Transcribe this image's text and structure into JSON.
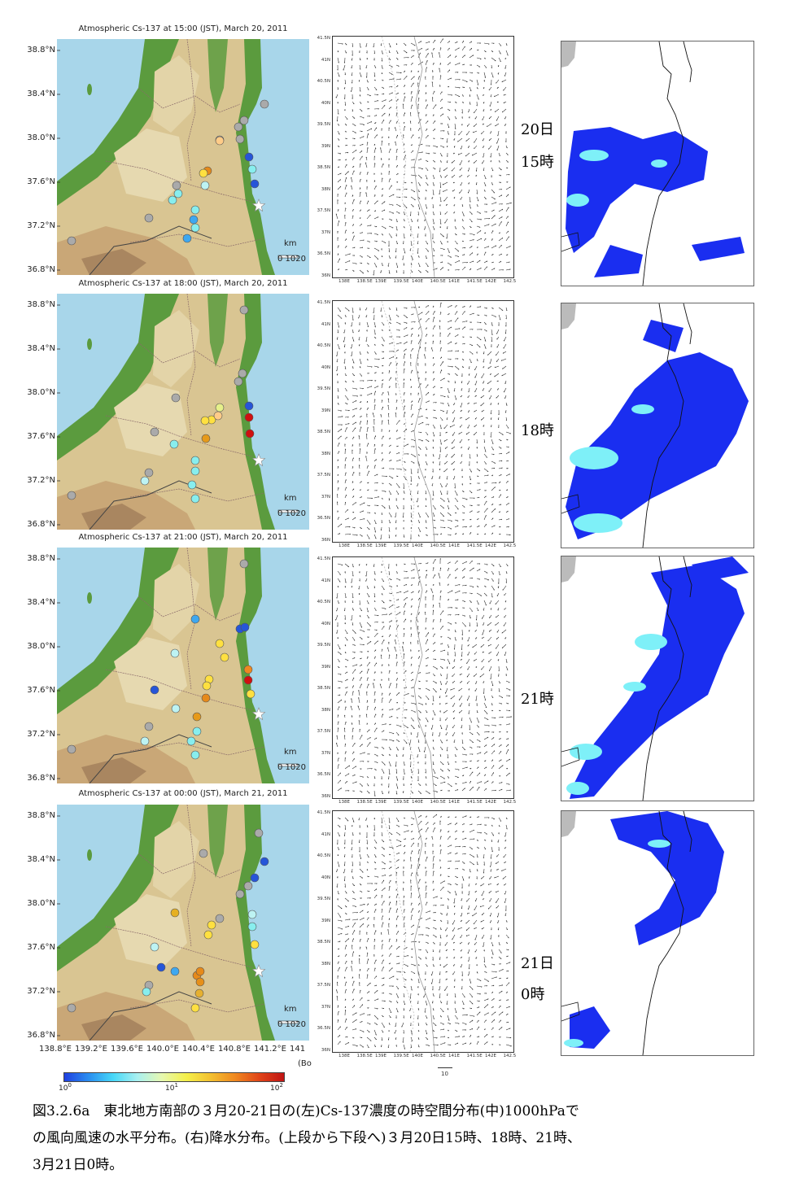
{
  "panels": [
    {
      "map_title": "Atmospheric Cs-137 at 15:00 (JST), March 20, 2011",
      "time_label_lines": [
        "20日",
        "15時"
      ],
      "scale_unit": "km",
      "scale_ticks": "0 1020"
    },
    {
      "map_title": "Atmospheric Cs-137 at 18:00 (JST), March 20, 2011",
      "time_label_lines": [
        "18時"
      ],
      "scale_unit": "km",
      "scale_ticks": "0 1020"
    },
    {
      "map_title": "Atmospheric Cs-137 at 21:00 (JST), March 20, 2011",
      "time_label_lines": [
        "21時"
      ],
      "scale_unit": "km",
      "scale_ticks": "0 1020"
    },
    {
      "map_title": "Atmospheric Cs-137 at 00:00 (JST), March 21, 2011",
      "time_label_lines": [
        "21日",
        "0時"
      ],
      "scale_unit": "km",
      "scale_ticks": "0 1020"
    }
  ],
  "map_lat_labels": [
    "38.8°N",
    "38.4°N",
    "38.0°N",
    "37.6°N",
    "37.2°N",
    "36.8°N"
  ],
  "map_lon_labels": [
    "138.8°E",
    "139.2°E",
    "139.6°E",
    "140.0°E",
    "140.4°E",
    "140.8°E",
    "141.2°E",
    "141"
  ],
  "map_lon_cut": "(Bo",
  "wind_lat_labels": [
    "41.5N",
    "41N",
    "40.5N",
    "40N",
    "39.5N",
    "39N",
    "38.5N",
    "38N",
    "37.5N",
    "37N",
    "36.5N",
    "36N"
  ],
  "wind_lon_labels": [
    "138E",
    "138.5E",
    "139E",
    "139.5E",
    "140E",
    "140.5E",
    "141E",
    "141.5E",
    "142E",
    "142.5"
  ],
  "wind_ref_label": "10",
  "colorbar": {
    "ticks": [
      "10",
      "10",
      "10"
    ],
    "exponents": [
      "0",
      "1",
      "2"
    ],
    "colors": [
      "#1f3fe0",
      "#2a8ef0",
      "#47d8f8",
      "#a9f0f0",
      "#e6f8b0",
      "#f4f04a",
      "#f3c030",
      "#ef8820",
      "#e04418",
      "#c01414"
    ]
  },
  "caption_lines": [
    "図3.2.6a　東北地方南部の３月20-21日の(左)Cs-137濃度の時空間分布(中)1000hPaで",
    "の風向風速の水平分布。(右)降水分布。(上段から下段へ)３月20日15時、18時、21時、",
    "3月21日0時。"
  ]
}
